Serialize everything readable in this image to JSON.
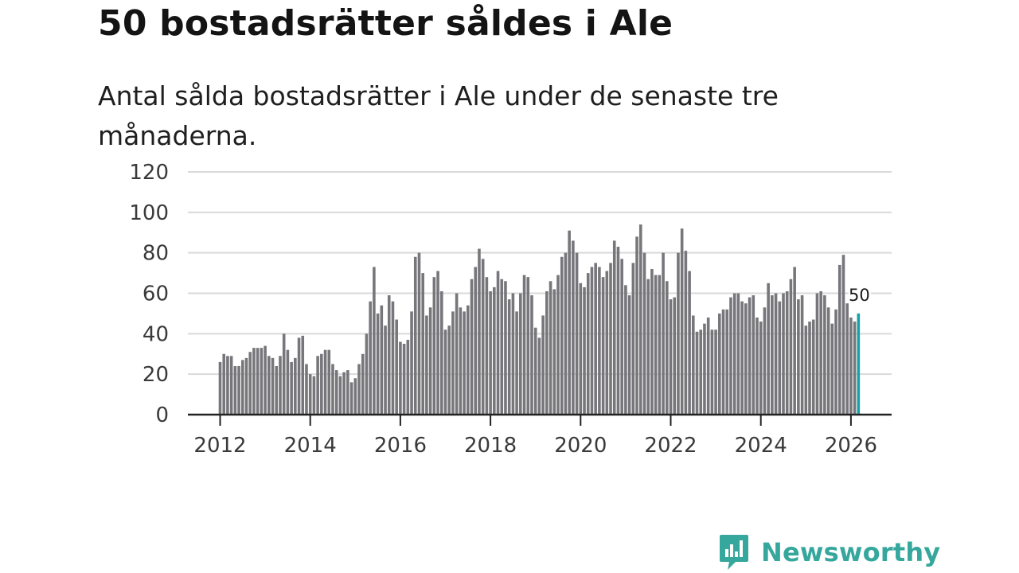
{
  "title": "50 bostadsrätter såldes i Ale",
  "subtitle": "Antal sålda bostadsrätter i Ale under de senaste tre månaderna.",
  "brand": {
    "name": "Newsworthy",
    "color": "#35a79c",
    "icon": "bar-chart-speech-bubble-icon"
  },
  "colors": {
    "bar": "#77767b",
    "highlight": "#16a2a4",
    "grid": "#d9d9d9",
    "axis": "#222222"
  },
  "chart_data": {
    "type": "bar",
    "title": "50 bostadsrätter såldes i Ale",
    "xlabel": "",
    "ylabel": "",
    "ylim": [
      0,
      120
    ],
    "y_ticks": [
      0,
      20,
      40,
      60,
      80,
      100,
      120
    ],
    "x_ticks": [
      "2012",
      "2014",
      "2016",
      "2018",
      "2020",
      "2022",
      "2024",
      "2026"
    ],
    "start": "2012-01",
    "end": "2026-03",
    "grid": true,
    "highlight_label": "50",
    "values": [
      26,
      30,
      29,
      29,
      24,
      24,
      27,
      28,
      31,
      33,
      33,
      33,
      34,
      29,
      28,
      24,
      29,
      40,
      32,
      26,
      28,
      38,
      39,
      25,
      20,
      19,
      29,
      30,
      32,
      32,
      25,
      22,
      19,
      21,
      22,
      16,
      18,
      25,
      30,
      40,
      56,
      73,
      50,
      54,
      44,
      59,
      56,
      47,
      36,
      35,
      37,
      51,
      78,
      80,
      70,
      49,
      53,
      68,
      71,
      61,
      42,
      44,
      51,
      60,
      53,
      51,
      54,
      67,
      73,
      82,
      77,
      68,
      61,
      63,
      71,
      67,
      66,
      57,
      60,
      51,
      60,
      69,
      68,
      59,
      43,
      38,
      49,
      61,
      66,
      62,
      69,
      78,
      80,
      91,
      86,
      80,
      65,
      63,
      70,
      73,
      75,
      73,
      68,
      71,
      75,
      86,
      83,
      77,
      64,
      59,
      75,
      88,
      94,
      80,
      67,
      72,
      69,
      69,
      80,
      66,
      57,
      58,
      80,
      92,
      81,
      71,
      49,
      41,
      42,
      45,
      48,
      42,
      42,
      50,
      52,
      52,
      58,
      60,
      60,
      56,
      55,
      58,
      59,
      48,
      46,
      53,
      65,
      59,
      60,
      56,
      60,
      61,
      67,
      73,
      57,
      59,
      44,
      46,
      47,
      60,
      61,
      59,
      53,
      45,
      52,
      74,
      79,
      55,
      48,
      46,
      50
    ]
  }
}
